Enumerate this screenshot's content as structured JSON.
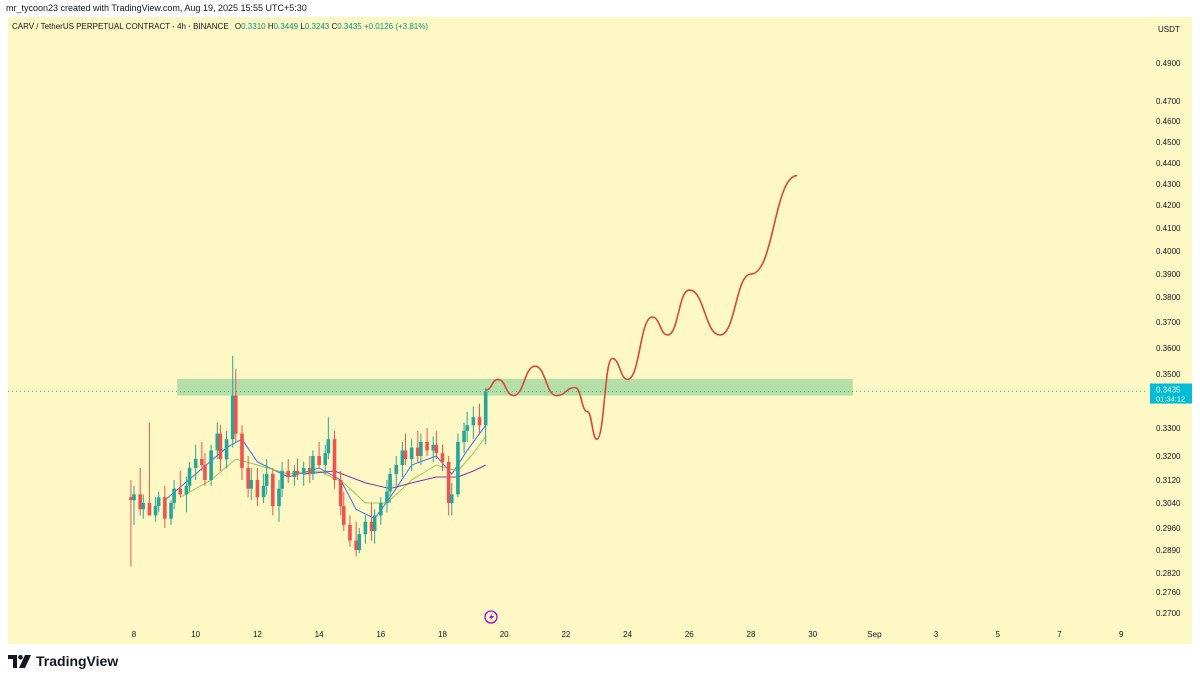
{
  "header": {
    "credit": "mr_tycoon23 created with TradingView.com, Aug 19, 2025 15:55 UTC+5:30"
  },
  "legend": {
    "symbol": "CARV / TetherUS PERPETUAL CONTRACT · 4h · BINANCE",
    "open_label": "O",
    "open": "0.3310",
    "high_label": "H",
    "high": "0.3449",
    "low_label": "L",
    "low": "0.3243",
    "close_label": "C",
    "close": "0.3435",
    "change": "+0.0126 (+3.81%)"
  },
  "colors": {
    "background": "#fef8c5",
    "up": "#26a69a",
    "down": "#ef5350",
    "zone": "#a8dba0",
    "projection": "#d84838",
    "ma_fast": "#2962ff",
    "ma_mid": "#8bc34a",
    "ma_slow": "#7b1fa2",
    "price_label": "#00bcd4"
  },
  "price_axis": {
    "currency": "USDT",
    "ticks": [
      "0.4900",
      "0.4700",
      "0.4600",
      "0.4500",
      "0.4400",
      "0.4300",
      "0.4200",
      "0.4100",
      "0.4000",
      "0.3900",
      "0.3800",
      "0.3700",
      "0.3600",
      "0.3500",
      "0.3300",
      "0.3200",
      "0.3120",
      "0.3040",
      "0.2960",
      "0.2890",
      "0.2820",
      "0.2760",
      "0.2700"
    ],
    "current_price": "0.3435",
    "countdown": "01:34:12"
  },
  "time_axis": {
    "ticks": [
      "8",
      "10",
      "12",
      "14",
      "16",
      "18",
      "20",
      "22",
      "24",
      "26",
      "28",
      "30",
      "Sep",
      "3",
      "5",
      "7",
      "9"
    ]
  },
  "chart_data": {
    "type": "candlestick",
    "symbol": "CARV/USDT perpetual",
    "interval": "4h",
    "x_unit": "day of August 2025",
    "y_unit": "USDT",
    "candles": [
      {
        "t": 7.9,
        "o": 0.306,
        "h": 0.312,
        "l": 0.284,
        "c": 0.305
      },
      {
        "t": 8.0,
        "o": 0.305,
        "h": 0.31,
        "l": 0.297,
        "c": 0.307
      },
      {
        "t": 8.2,
        "o": 0.307,
        "h": 0.316,
        "l": 0.3,
        "c": 0.302
      },
      {
        "t": 8.3,
        "o": 0.302,
        "h": 0.307,
        "l": 0.299,
        "c": 0.304
      },
      {
        "t": 8.5,
        "o": 0.304,
        "h": 0.332,
        "l": 0.3,
        "c": 0.3
      },
      {
        "t": 8.7,
        "o": 0.3,
        "h": 0.306,
        "l": 0.298,
        "c": 0.303
      },
      {
        "t": 8.8,
        "o": 0.303,
        "h": 0.308,
        "l": 0.301,
        "c": 0.306
      },
      {
        "t": 9.0,
        "o": 0.306,
        "h": 0.31,
        "l": 0.296,
        "c": 0.299
      },
      {
        "t": 9.2,
        "o": 0.299,
        "h": 0.305,
        "l": 0.297,
        "c": 0.304
      },
      {
        "t": 9.3,
        "o": 0.304,
        "h": 0.312,
        "l": 0.302,
        "c": 0.309
      },
      {
        "t": 9.5,
        "o": 0.309,
        "h": 0.315,
        "l": 0.306,
        "c": 0.307
      },
      {
        "t": 9.7,
        "o": 0.307,
        "h": 0.313,
        "l": 0.301,
        "c": 0.31
      },
      {
        "t": 9.8,
        "o": 0.31,
        "h": 0.318,
        "l": 0.308,
        "c": 0.316
      },
      {
        "t": 10.0,
        "o": 0.316,
        "h": 0.324,
        "l": 0.312,
        "c": 0.319
      },
      {
        "t": 10.2,
        "o": 0.319,
        "h": 0.325,
        "l": 0.315,
        "c": 0.317
      },
      {
        "t": 10.3,
        "o": 0.317,
        "h": 0.321,
        "l": 0.31,
        "c": 0.312
      },
      {
        "t": 10.5,
        "o": 0.312,
        "h": 0.324,
        "l": 0.31,
        "c": 0.322
      },
      {
        "t": 10.7,
        "o": 0.322,
        "h": 0.332,
        "l": 0.319,
        "c": 0.328
      },
      {
        "t": 10.8,
        "o": 0.328,
        "h": 0.331,
        "l": 0.315,
        "c": 0.319
      },
      {
        "t": 11.0,
        "o": 0.319,
        "h": 0.329,
        "l": 0.316,
        "c": 0.326
      },
      {
        "t": 11.2,
        "o": 0.326,
        "h": 0.357,
        "l": 0.323,
        "c": 0.342
      },
      {
        "t": 11.3,
        "o": 0.342,
        "h": 0.352,
        "l": 0.325,
        "c": 0.328
      },
      {
        "t": 11.5,
        "o": 0.328,
        "h": 0.331,
        "l": 0.312,
        "c": 0.316
      },
      {
        "t": 11.7,
        "o": 0.316,
        "h": 0.32,
        "l": 0.306,
        "c": 0.309
      },
      {
        "t": 11.8,
        "o": 0.309,
        "h": 0.316,
        "l": 0.305,
        "c": 0.312
      },
      {
        "t": 12.0,
        "o": 0.312,
        "h": 0.316,
        "l": 0.303,
        "c": 0.306
      },
      {
        "t": 12.2,
        "o": 0.306,
        "h": 0.314,
        "l": 0.304,
        "c": 0.31
      },
      {
        "t": 12.3,
        "o": 0.31,
        "h": 0.319,
        "l": 0.307,
        "c": 0.314
      },
      {
        "t": 12.5,
        "o": 0.314,
        "h": 0.316,
        "l": 0.3,
        "c": 0.303
      },
      {
        "t": 12.7,
        "o": 0.303,
        "h": 0.312,
        "l": 0.298,
        "c": 0.309
      },
      {
        "t": 12.8,
        "o": 0.309,
        "h": 0.318,
        "l": 0.306,
        "c": 0.315
      },
      {
        "t": 13.0,
        "o": 0.315,
        "h": 0.319,
        "l": 0.311,
        "c": 0.313
      },
      {
        "t": 13.2,
        "o": 0.313,
        "h": 0.317,
        "l": 0.31,
        "c": 0.315
      },
      {
        "t": 13.3,
        "o": 0.315,
        "h": 0.319,
        "l": 0.312,
        "c": 0.314
      },
      {
        "t": 13.5,
        "o": 0.314,
        "h": 0.318,
        "l": 0.31,
        "c": 0.316
      },
      {
        "t": 13.7,
        "o": 0.316,
        "h": 0.32,
        "l": 0.311,
        "c": 0.314
      },
      {
        "t": 13.8,
        "o": 0.314,
        "h": 0.322,
        "l": 0.312,
        "c": 0.32
      },
      {
        "t": 14.0,
        "o": 0.32,
        "h": 0.325,
        "l": 0.316,
        "c": 0.317
      },
      {
        "t": 14.2,
        "o": 0.317,
        "h": 0.324,
        "l": 0.314,
        "c": 0.321
      },
      {
        "t": 14.3,
        "o": 0.321,
        "h": 0.334,
        "l": 0.319,
        "c": 0.326
      },
      {
        "t": 14.5,
        "o": 0.326,
        "h": 0.329,
        "l": 0.309,
        "c": 0.312
      },
      {
        "t": 14.7,
        "o": 0.312,
        "h": 0.315,
        "l": 0.3,
        "c": 0.303
      },
      {
        "t": 14.8,
        "o": 0.303,
        "h": 0.308,
        "l": 0.295,
        "c": 0.297
      },
      {
        "t": 15.0,
        "o": 0.297,
        "h": 0.3,
        "l": 0.29,
        "c": 0.292
      },
      {
        "t": 15.2,
        "o": 0.292,
        "h": 0.298,
        "l": 0.287,
        "c": 0.289
      },
      {
        "t": 15.3,
        "o": 0.289,
        "h": 0.296,
        "l": 0.288,
        "c": 0.294
      },
      {
        "t": 15.5,
        "o": 0.294,
        "h": 0.3,
        "l": 0.291,
        "c": 0.298
      },
      {
        "t": 15.7,
        "o": 0.298,
        "h": 0.304,
        "l": 0.292,
        "c": 0.295
      },
      {
        "t": 15.8,
        "o": 0.295,
        "h": 0.302,
        "l": 0.291,
        "c": 0.3
      },
      {
        "t": 16.0,
        "o": 0.3,
        "h": 0.306,
        "l": 0.297,
        "c": 0.304
      },
      {
        "t": 16.2,
        "o": 0.304,
        "h": 0.312,
        "l": 0.301,
        "c": 0.308
      },
      {
        "t": 16.3,
        "o": 0.308,
        "h": 0.316,
        "l": 0.304,
        "c": 0.314
      },
      {
        "t": 16.5,
        "o": 0.314,
        "h": 0.32,
        "l": 0.31,
        "c": 0.317
      },
      {
        "t": 16.7,
        "o": 0.317,
        "h": 0.325,
        "l": 0.313,
        "c": 0.322
      },
      {
        "t": 16.8,
        "o": 0.322,
        "h": 0.328,
        "l": 0.317,
        "c": 0.319
      },
      {
        "t": 17.0,
        "o": 0.319,
        "h": 0.326,
        "l": 0.315,
        "c": 0.323
      },
      {
        "t": 17.2,
        "o": 0.323,
        "h": 0.329,
        "l": 0.318,
        "c": 0.32
      },
      {
        "t": 17.3,
        "o": 0.32,
        "h": 0.328,
        "l": 0.317,
        "c": 0.325
      },
      {
        "t": 17.5,
        "o": 0.325,
        "h": 0.33,
        "l": 0.32,
        "c": 0.322
      },
      {
        "t": 17.7,
        "o": 0.322,
        "h": 0.327,
        "l": 0.318,
        "c": 0.324
      },
      {
        "t": 17.8,
        "o": 0.324,
        "h": 0.329,
        "l": 0.319,
        "c": 0.321
      },
      {
        "t": 18.0,
        "o": 0.321,
        "h": 0.324,
        "l": 0.315,
        "c": 0.318
      },
      {
        "t": 18.2,
        "o": 0.318,
        "h": 0.32,
        "l": 0.3,
        "c": 0.304
      },
      {
        "t": 18.3,
        "o": 0.304,
        "h": 0.311,
        "l": 0.3,
        "c": 0.307
      },
      {
        "t": 18.5,
        "o": 0.307,
        "h": 0.328,
        "l": 0.306,
        "c": 0.325
      },
      {
        "t": 18.7,
        "o": 0.325,
        "h": 0.332,
        "l": 0.321,
        "c": 0.329
      },
      {
        "t": 18.8,
        "o": 0.329,
        "h": 0.336,
        "l": 0.325,
        "c": 0.331
      },
      {
        "t": 19.0,
        "o": 0.331,
        "h": 0.338,
        "l": 0.326,
        "c": 0.334
      },
      {
        "t": 19.2,
        "o": 0.334,
        "h": 0.339,
        "l": 0.328,
        "c": 0.331
      },
      {
        "t": 19.4,
        "o": 0.331,
        "h": 0.3449,
        "l": 0.3243,
        "c": 0.3435
      }
    ],
    "moving_averages": [
      {
        "color_key": "ma_fast",
        "points": [
          [
            9.0,
            0.305
          ],
          [
            10.0,
            0.314
          ],
          [
            11.0,
            0.323
          ],
          [
            11.5,
            0.326
          ],
          [
            12.0,
            0.318
          ],
          [
            13.0,
            0.313
          ],
          [
            14.0,
            0.316
          ],
          [
            14.7,
            0.312
          ],
          [
            15.2,
            0.302
          ],
          [
            15.8,
            0.299
          ],
          [
            16.3,
            0.306
          ],
          [
            17.0,
            0.317
          ],
          [
            17.8,
            0.32
          ],
          [
            18.3,
            0.314
          ],
          [
            18.8,
            0.322
          ],
          [
            19.4,
            0.331
          ]
        ]
      },
      {
        "color_key": "ma_mid",
        "points": [
          [
            9.5,
            0.306
          ],
          [
            10.5,
            0.312
          ],
          [
            11.3,
            0.319
          ],
          [
            12.0,
            0.317
          ],
          [
            13.0,
            0.314
          ],
          [
            14.0,
            0.315
          ],
          [
            14.8,
            0.311
          ],
          [
            15.5,
            0.304
          ],
          [
            16.2,
            0.304
          ],
          [
            17.0,
            0.312
          ],
          [
            17.8,
            0.317
          ],
          [
            18.5,
            0.315
          ],
          [
            19.0,
            0.321
          ],
          [
            19.4,
            0.327
          ]
        ]
      },
      {
        "color_key": "ma_slow",
        "points": [
          [
            13.5,
            0.314
          ],
          [
            14.5,
            0.315
          ],
          [
            15.5,
            0.311
          ],
          [
            16.3,
            0.309
          ],
          [
            17.0,
            0.311
          ],
          [
            17.8,
            0.313
          ],
          [
            18.5,
            0.313
          ],
          [
            19.0,
            0.315
          ],
          [
            19.4,
            0.317
          ]
        ]
      }
    ],
    "zone": {
      "t_start": 9.4,
      "t_end": 31.3,
      "y_low": 0.342,
      "y_high": 0.346
    },
    "projection": [
      [
        19.4,
        0.344
      ],
      [
        19.8,
        0.348
      ],
      [
        20.3,
        0.342
      ],
      [
        21.0,
        0.353
      ],
      [
        21.7,
        0.342
      ],
      [
        22.3,
        0.345
      ],
      [
        22.7,
        0.336
      ],
      [
        23.0,
        0.326
      ],
      [
        23.5,
        0.356
      ],
      [
        24.0,
        0.348
      ],
      [
        24.8,
        0.372
      ],
      [
        25.3,
        0.365
      ],
      [
        26.0,
        0.383
      ],
      [
        27.0,
        0.365
      ],
      [
        28.0,
        0.39
      ],
      [
        29.5,
        0.434
      ]
    ]
  }
}
